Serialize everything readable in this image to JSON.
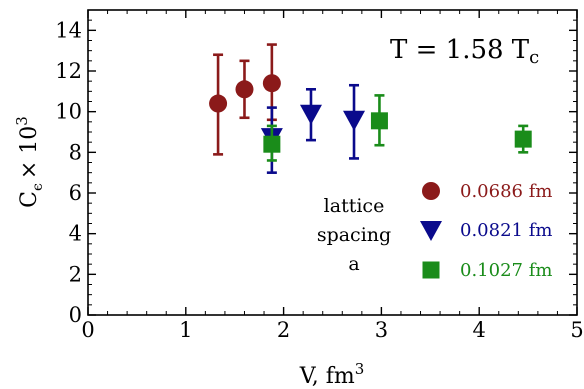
{
  "chart_data": {
    "type": "scatter",
    "xlabel": "V, fm",
    "xlabel_sup": "3",
    "ylabel_main": "C",
    "ylabel_sub": "ϵ",
    "ylabel_times": "× 10",
    "ylabel_sup": "3",
    "xlim": [
      0,
      5
    ],
    "ylim": [
      0,
      15
    ],
    "x_ticks": [
      0,
      1,
      2,
      3,
      4,
      5
    ],
    "y_ticks": [
      0,
      2,
      4,
      6,
      8,
      10,
      12,
      14
    ],
    "grid": false,
    "annotation_main": "T = 1.58 T",
    "annotation_sub": "c",
    "legend_title": [
      "lattice",
      "spacing",
      "a"
    ],
    "legend_position": "bottom-right",
    "series": [
      {
        "name": "0.0686 fm",
        "marker": "circle",
        "color": "#8b1a1a",
        "points": [
          {
            "x": 1.33,
            "y": 10.4,
            "ylo": 7.9,
            "yhi": 12.8
          },
          {
            "x": 1.6,
            "y": 11.1,
            "ylo": 9.7,
            "yhi": 12.5
          },
          {
            "x": 1.88,
            "y": 11.4,
            "ylo": 9.6,
            "yhi": 13.3
          }
        ]
      },
      {
        "name": "0.0821 fm",
        "marker": "triangle-down",
        "color": "#0a0a8c",
        "points": [
          {
            "x": 1.88,
            "y": 8.75,
            "ylo": 7.0,
            "yhi": 10.2
          },
          {
            "x": 2.28,
            "y": 9.9,
            "ylo": 8.6,
            "yhi": 11.1
          },
          {
            "x": 2.72,
            "y": 9.6,
            "ylo": 7.7,
            "yhi": 11.3
          }
        ]
      },
      {
        "name": "0.1027 fm",
        "marker": "square",
        "color": "#1a8c1a",
        "points": [
          {
            "x": 1.88,
            "y": 8.4,
            "ylo": 7.6,
            "yhi": 9.3
          },
          {
            "x": 2.98,
            "y": 9.55,
            "ylo": 8.35,
            "yhi": 10.8
          },
          {
            "x": 4.45,
            "y": 8.65,
            "ylo": 8.0,
            "yhi": 9.3
          }
        ]
      }
    ]
  }
}
